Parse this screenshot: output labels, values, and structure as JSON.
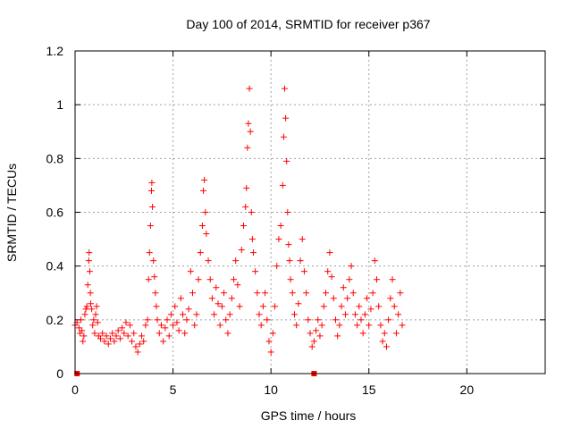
{
  "chart_data": {
    "type": "scatter",
    "title": "Day 100 of 2014, SRMTID for receiver p367",
    "xlabel": "GPS time / hours",
    "ylabel": "SRMTID / TECUs",
    "xlim": [
      0,
      24
    ],
    "ylim": [
      0,
      1.2
    ],
    "x_ticks": [
      0,
      5,
      10,
      15,
      20
    ],
    "x_tick_labels": [
      "0",
      "5",
      "10",
      "15",
      "20"
    ],
    "y_ticks": [
      0,
      0.2,
      0.4,
      0.6,
      0.8,
      1.0,
      1.2
    ],
    "y_tick_labels": [
      "0",
      "0.2",
      "0.4",
      "0.6",
      "0.8",
      "1",
      "1.2"
    ],
    "grid": true,
    "marker": "plus",
    "color": "#ff0000",
    "axis_markers": [
      {
        "x": 0.1,
        "y": 0
      },
      {
        "x": 12.2,
        "y": 0
      }
    ],
    "series": [
      {
        "name": "SRMTID",
        "points": [
          [
            0.0,
            0.18
          ],
          [
            0.1,
            0.19
          ],
          [
            0.2,
            0.17
          ],
          [
            0.25,
            0.15
          ],
          [
            0.3,
            0.2
          ],
          [
            0.35,
            0.16
          ],
          [
            0.4,
            0.12
          ],
          [
            0.45,
            0.14
          ],
          [
            0.5,
            0.22
          ],
          [
            0.55,
            0.24
          ],
          [
            0.6,
            0.25
          ],
          [
            0.65,
            0.33
          ],
          [
            0.7,
            0.42
          ],
          [
            0.72,
            0.45
          ],
          [
            0.75,
            0.38
          ],
          [
            0.78,
            0.3
          ],
          [
            0.8,
            0.26
          ],
          [
            0.85,
            0.24
          ],
          [
            0.9,
            0.18
          ],
          [
            0.95,
            0.2
          ],
          [
            1.0,
            0.15
          ],
          [
            1.05,
            0.22
          ],
          [
            1.1,
            0.25
          ],
          [
            1.15,
            0.19
          ],
          [
            1.2,
            0.14
          ],
          [
            1.3,
            0.13
          ],
          [
            1.4,
            0.15
          ],
          [
            1.5,
            0.12
          ],
          [
            1.6,
            0.14
          ],
          [
            1.7,
            0.11
          ],
          [
            1.8,
            0.13
          ],
          [
            1.9,
            0.15
          ],
          [
            2.0,
            0.12
          ],
          [
            2.1,
            0.14
          ],
          [
            2.2,
            0.16
          ],
          [
            2.3,
            0.13
          ],
          [
            2.4,
            0.17
          ],
          [
            2.5,
            0.15
          ],
          [
            2.6,
            0.19
          ],
          [
            2.7,
            0.14
          ],
          [
            2.8,
            0.18
          ],
          [
            2.9,
            0.12
          ],
          [
            3.0,
            0.15
          ],
          [
            3.1,
            0.1
          ],
          [
            3.2,
            0.08
          ],
          [
            3.3,
            0.11
          ],
          [
            3.4,
            0.14
          ],
          [
            3.5,
            0.12
          ],
          [
            3.6,
            0.18
          ],
          [
            3.7,
            0.2
          ],
          [
            3.75,
            0.35
          ],
          [
            3.8,
            0.45
          ],
          [
            3.85,
            0.55
          ],
          [
            3.9,
            0.68
          ],
          [
            3.92,
            0.71
          ],
          [
            3.95,
            0.62
          ],
          [
            4.0,
            0.42
          ],
          [
            4.05,
            0.36
          ],
          [
            4.1,
            0.3
          ],
          [
            4.15,
            0.25
          ],
          [
            4.2,
            0.2
          ],
          [
            4.3,
            0.15
          ],
          [
            4.4,
            0.18
          ],
          [
            4.5,
            0.12
          ],
          [
            4.6,
            0.17
          ],
          [
            4.7,
            0.2
          ],
          [
            4.8,
            0.14
          ],
          [
            4.9,
            0.22
          ],
          [
            5.0,
            0.18
          ],
          [
            5.1,
            0.25
          ],
          [
            5.2,
            0.19
          ],
          [
            5.3,
            0.16
          ],
          [
            5.4,
            0.28
          ],
          [
            5.5,
            0.22
          ],
          [
            5.6,
            0.15
          ],
          [
            5.7,
            0.2
          ],
          [
            5.8,
            0.24
          ],
          [
            5.9,
            0.38
          ],
          [
            6.0,
            0.3
          ],
          [
            6.1,
            0.18
          ],
          [
            6.2,
            0.22
          ],
          [
            6.3,
            0.35
          ],
          [
            6.4,
            0.45
          ],
          [
            6.5,
            0.55
          ],
          [
            6.55,
            0.68
          ],
          [
            6.6,
            0.72
          ],
          [
            6.65,
            0.6
          ],
          [
            6.7,
            0.52
          ],
          [
            6.8,
            0.42
          ],
          [
            6.9,
            0.35
          ],
          [
            7.0,
            0.28
          ],
          [
            7.1,
            0.22
          ],
          [
            7.2,
            0.32
          ],
          [
            7.3,
            0.26
          ],
          [
            7.4,
            0.18
          ],
          [
            7.5,
            0.25
          ],
          [
            7.6,
            0.3
          ],
          [
            7.7,
            0.2
          ],
          [
            7.8,
            0.15
          ],
          [
            7.9,
            0.22
          ],
          [
            8.0,
            0.28
          ],
          [
            8.1,
            0.35
          ],
          [
            8.2,
            0.42
          ],
          [
            8.3,
            0.33
          ],
          [
            8.4,
            0.25
          ],
          [
            8.5,
            0.46
          ],
          [
            8.6,
            0.55
          ],
          [
            8.7,
            0.62
          ],
          [
            8.75,
            0.69
          ],
          [
            8.8,
            0.84
          ],
          [
            8.85,
            0.93
          ],
          [
            8.9,
            1.06
          ],
          [
            8.95,
            0.9
          ],
          [
            9.0,
            0.6
          ],
          [
            9.05,
            0.5
          ],
          [
            9.1,
            0.45
          ],
          [
            9.2,
            0.38
          ],
          [
            9.3,
            0.3
          ],
          [
            9.4,
            0.22
          ],
          [
            9.5,
            0.18
          ],
          [
            9.6,
            0.25
          ],
          [
            9.7,
            0.3
          ],
          [
            9.8,
            0.2
          ],
          [
            9.9,
            0.12
          ],
          [
            10.0,
            0.08
          ],
          [
            10.1,
            0.15
          ],
          [
            10.2,
            0.25
          ],
          [
            10.3,
            0.4
          ],
          [
            10.4,
            0.5
          ],
          [
            10.5,
            0.55
          ],
          [
            10.6,
            0.7
          ],
          [
            10.65,
            0.88
          ],
          [
            10.7,
            1.06
          ],
          [
            10.75,
            0.95
          ],
          [
            10.8,
            0.79
          ],
          [
            10.85,
            0.6
          ],
          [
            10.9,
            0.48
          ],
          [
            10.95,
            0.42
          ],
          [
            11.0,
            0.35
          ],
          [
            11.1,
            0.3
          ],
          [
            11.2,
            0.22
          ],
          [
            11.3,
            0.18
          ],
          [
            11.4,
            0.26
          ],
          [
            11.5,
            0.42
          ],
          [
            11.6,
            0.5
          ],
          [
            11.7,
            0.38
          ],
          [
            11.8,
            0.3
          ],
          [
            11.9,
            0.2
          ],
          [
            12.0,
            0.15
          ],
          [
            12.1,
            0.1
          ],
          [
            12.2,
            0.12
          ],
          [
            12.3,
            0.16
          ],
          [
            12.4,
            0.2
          ],
          [
            12.5,
            0.14
          ],
          [
            12.6,
            0.18
          ],
          [
            12.7,
            0.25
          ],
          [
            12.8,
            0.3
          ],
          [
            12.9,
            0.38
          ],
          [
            13.0,
            0.45
          ],
          [
            13.1,
            0.36
          ],
          [
            13.2,
            0.28
          ],
          [
            13.3,
            0.2
          ],
          [
            13.4,
            0.14
          ],
          [
            13.5,
            0.18
          ],
          [
            13.6,
            0.25
          ],
          [
            13.7,
            0.32
          ],
          [
            13.8,
            0.22
          ],
          [
            13.9,
            0.28
          ],
          [
            14.0,
            0.35
          ],
          [
            14.1,
            0.4
          ],
          [
            14.2,
            0.3
          ],
          [
            14.3,
            0.22
          ],
          [
            14.4,
            0.18
          ],
          [
            14.5,
            0.25
          ],
          [
            14.6,
            0.2
          ],
          [
            14.7,
            0.15
          ],
          [
            14.8,
            0.22
          ],
          [
            14.9,
            0.28
          ],
          [
            15.0,
            0.18
          ],
          [
            15.1,
            0.24
          ],
          [
            15.2,
            0.3
          ],
          [
            15.3,
            0.42
          ],
          [
            15.4,
            0.35
          ],
          [
            15.5,
            0.25
          ],
          [
            15.6,
            0.18
          ],
          [
            15.7,
            0.12
          ],
          [
            15.8,
            0.15
          ],
          [
            15.9,
            0.1
          ],
          [
            16.0,
            0.2
          ],
          [
            16.1,
            0.28
          ],
          [
            16.2,
            0.35
          ],
          [
            16.3,
            0.25
          ],
          [
            16.4,
            0.15
          ],
          [
            16.5,
            0.22
          ],
          [
            16.6,
            0.3
          ],
          [
            16.7,
            0.18
          ]
        ]
      }
    ]
  }
}
